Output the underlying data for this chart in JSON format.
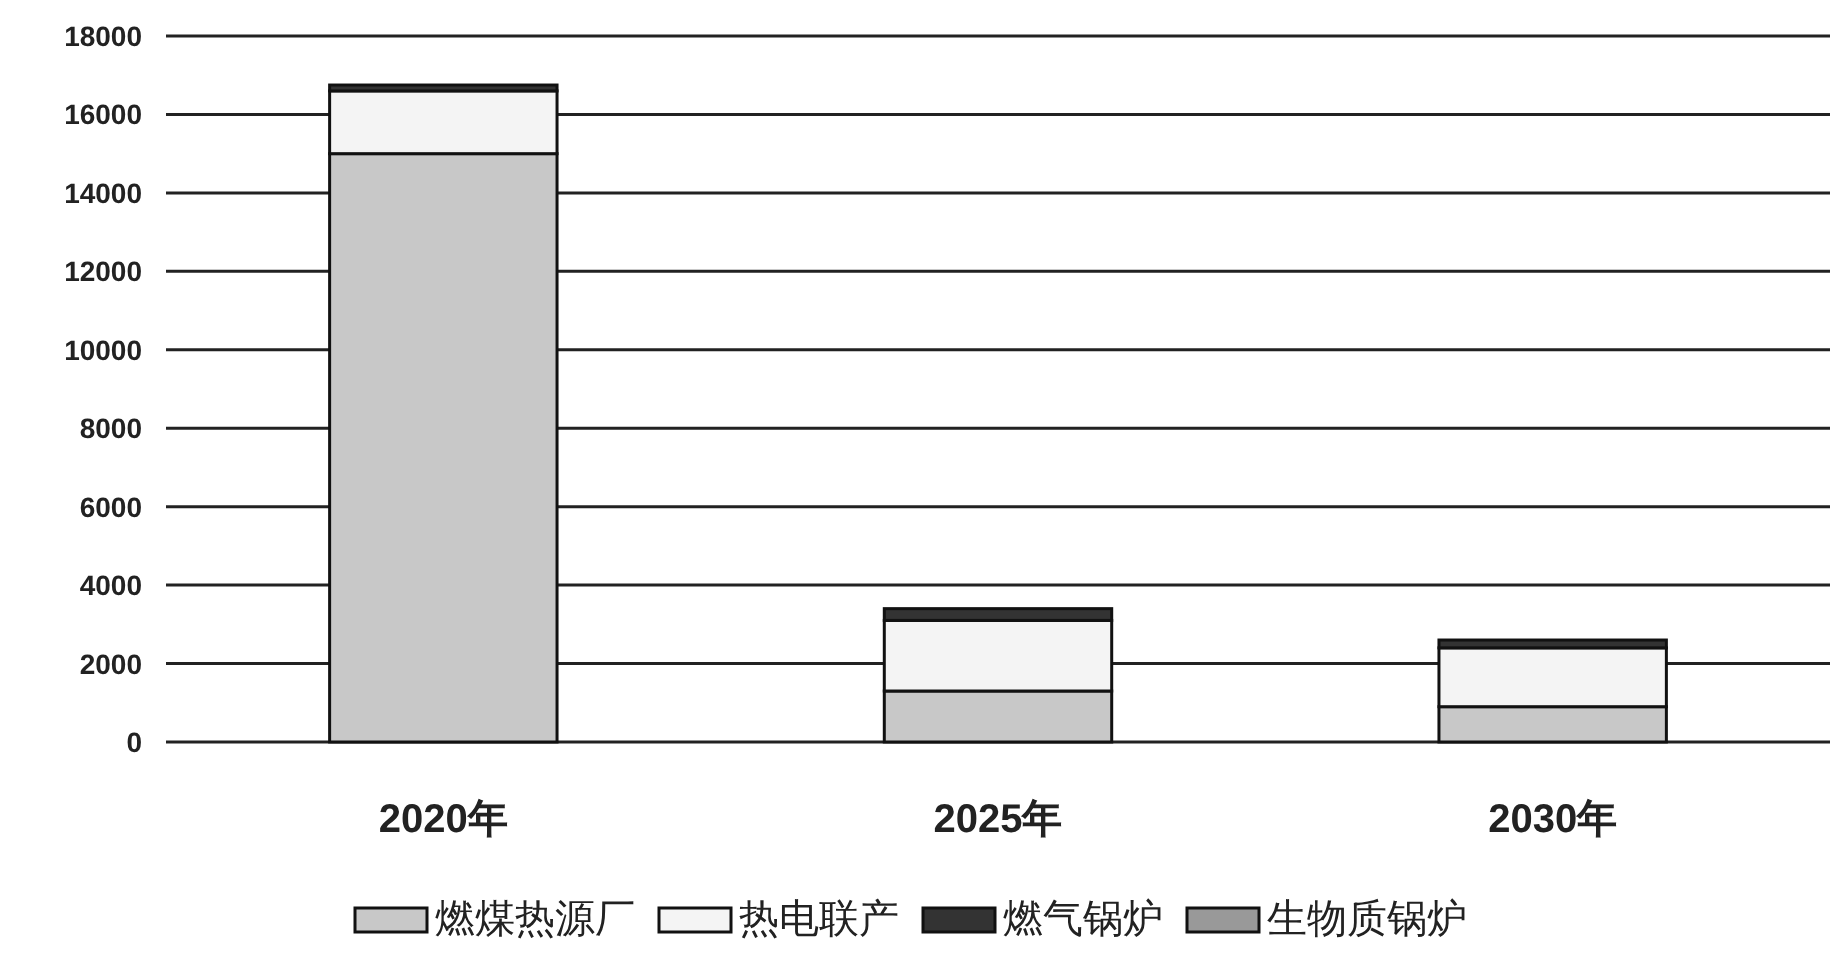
{
  "chart_data": {
    "type": "bar",
    "stacked": true,
    "categories": [
      "2020年",
      "2025年",
      "2030年"
    ],
    "series": [
      {
        "name": "燃煤热源厂",
        "color": "#c8c8c8",
        "values": [
          15000,
          1300,
          900
        ]
      },
      {
        "name": "热电联产",
        "color": "#f4f4f4",
        "values": [
          1600,
          1800,
          1500
        ]
      },
      {
        "name": "燃气锅炉",
        "color": "#333333",
        "values": [
          150,
          300,
          200
        ]
      },
      {
        "name": "生物质锅炉",
        "color": "#999999",
        "values": [
          0,
          0,
          0
        ]
      }
    ],
    "ylim": [
      0,
      18000
    ],
    "yticks": [
      0,
      2000,
      4000,
      6000,
      8000,
      10000,
      12000,
      14000,
      16000,
      18000
    ],
    "grid": "y",
    "legend": "bottom"
  }
}
